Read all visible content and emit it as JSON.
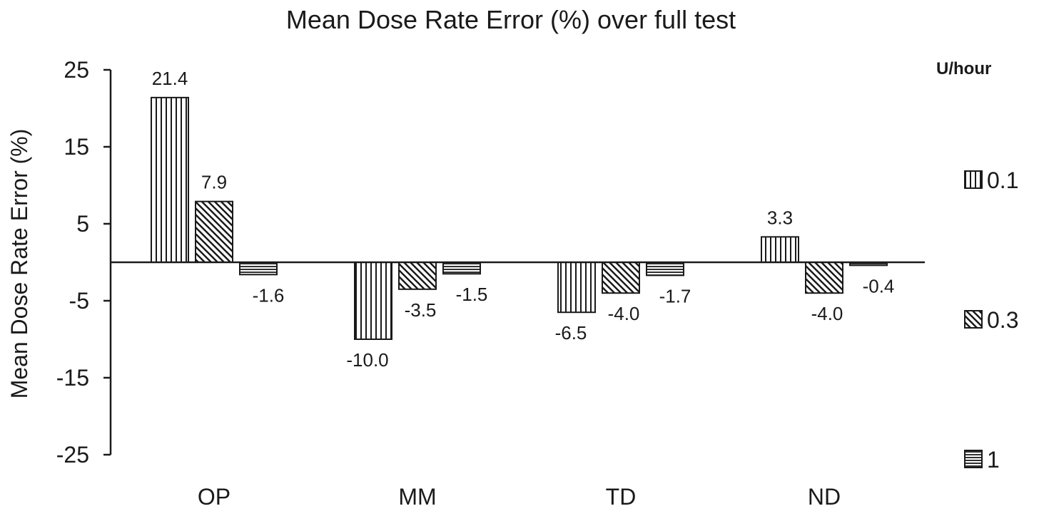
{
  "chart_data": {
    "type": "bar",
    "title": "Mean Dose Rate Error (%) over full test",
    "xlabel": "",
    "ylabel": "Mean Dose Rate Error (%)",
    "ylim": [
      -25,
      25
    ],
    "yticks": [
      25,
      15,
      5,
      -5,
      -15,
      -25
    ],
    "categories": [
      "OP",
      "MM",
      "TD",
      "ND"
    ],
    "legend_title": "U/hour",
    "legend_position": "right",
    "grid": false,
    "series": [
      {
        "name": "0.1",
        "pattern": "vertical-lines",
        "values": [
          21.4,
          -10.0,
          -6.5,
          3.3
        ],
        "labels": [
          "21.4",
          "-10.0",
          "-6.5",
          "3.3"
        ]
      },
      {
        "name": "0.3",
        "pattern": "diagonal-lines",
        "values": [
          7.9,
          -3.5,
          -4.0,
          -4.0
        ],
        "labels": [
          "7.9",
          "-3.5",
          "-4.0",
          "-4.0"
        ]
      },
      {
        "name": "1",
        "pattern": "horizontal-lines",
        "values": [
          -1.6,
          -1.5,
          -1.7,
          -0.4
        ],
        "labels": [
          "-1.6",
          "-1.5",
          "-1.7",
          "-0.4"
        ]
      }
    ]
  }
}
